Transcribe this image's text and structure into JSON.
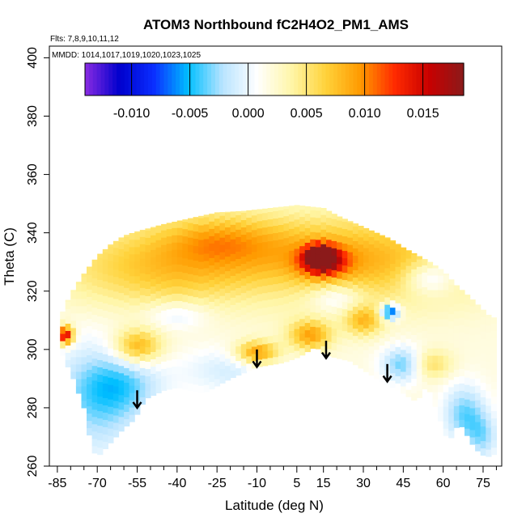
{
  "chart_data": {
    "type": "heatmap",
    "title": "ATOM3 Northbound fC2H4O2_PM1_AMS",
    "flights_note": "Flts: 7,8,9,10,11,12",
    "dates_note": "MMDD: 1014,1017,1019,1020,1023,1025",
    "xlabel": "Latitude (deg N)",
    "ylabel": "Theta (C)",
    "xlim": [
      -88,
      82
    ],
    "ylim": [
      260,
      404
    ],
    "x_ticks": [
      -85,
      -70,
      -55,
      -40,
      -25,
      -10,
      5,
      15,
      30,
      45,
      60,
      75
    ],
    "x_tick_labels": [
      "-85",
      "-70",
      "-55",
      "-40",
      "-25",
      "-10",
      "5",
      "15",
      "30",
      "45",
      "60",
      "75"
    ],
    "x_minor_ticks": [
      -80,
      -75,
      -65,
      -60,
      -50,
      -45,
      -35,
      -30,
      -20,
      -15,
      -5,
      0,
      10,
      20,
      25,
      35,
      40,
      50,
      55,
      65,
      70,
      80
    ],
    "y_ticks": [
      260,
      280,
      300,
      320,
      340,
      360,
      380,
      400
    ],
    "y_tick_labels": [
      "260",
      "280",
      "300",
      "320",
      "340",
      "360",
      "380",
      "400"
    ],
    "colorbar": {
      "range": [
        -0.014,
        0.0185
      ],
      "ticks": [
        -0.01,
        -0.005,
        0.0,
        0.005,
        0.01,
        0.015
      ],
      "tick_labels": [
        "-0.010",
        "-0.005",
        "0.000",
        "0.005",
        "0.010",
        "0.015"
      ],
      "colors": [
        "#8a2be2",
        "#0000cd",
        "#0a2eff",
        "#00bfff",
        "#b9e4ff",
        "#ffffff",
        "#fff6a8",
        "#ffd23a",
        "#ff9a00",
        "#ff2a00",
        "#c80000",
        "#8b1a1a"
      ]
    },
    "envelope": {
      "top": [
        [
          -84,
          311
        ],
        [
          -80,
          319
        ],
        [
          -75,
          326
        ],
        [
          -70,
          332
        ],
        [
          -65,
          336
        ],
        [
          -60,
          339
        ],
        [
          -55,
          340.5
        ],
        [
          -45,
          343
        ],
        [
          -35,
          345
        ],
        [
          -25,
          347
        ],
        [
          -15,
          347.5
        ],
        [
          -5,
          348.5
        ],
        [
          5,
          349.5
        ],
        [
          15,
          348.5
        ],
        [
          20,
          346
        ],
        [
          30,
          342
        ],
        [
          40,
          338
        ],
        [
          45,
          335
        ],
        [
          55,
          330
        ],
        [
          60,
          327
        ],
        [
          65,
          322
        ],
        [
          70,
          318
        ],
        [
          78,
          311
        ]
      ],
      "bottom": [
        [
          -84,
          300
        ],
        [
          -79,
          290
        ],
        [
          -75,
          280
        ],
        [
          -72,
          266
        ],
        [
          -70,
          263
        ],
        [
          -66,
          267
        ],
        [
          -60,
          273
        ],
        [
          -56,
          276
        ],
        [
          -52,
          283
        ],
        [
          -45,
          286
        ],
        [
          -40,
          287
        ],
        [
          -30,
          285
        ],
        [
          -20,
          290
        ],
        [
          -10,
          294
        ],
        [
          0,
          295.5
        ],
        [
          6,
          297.5
        ],
        [
          12,
          301
        ],
        [
          16,
          298
        ],
        [
          25,
          296
        ],
        [
          35,
          290
        ],
        [
          45,
          285
        ],
        [
          50,
          282
        ],
        [
          54,
          288
        ],
        [
          58,
          278
        ],
        [
          62,
          268
        ],
        [
          66,
          275
        ],
        [
          72,
          266
        ],
        [
          76,
          263
        ],
        [
          79,
          264
        ]
      ]
    },
    "blobs": [
      {
        "lat": -45,
        "theta": 328,
        "value": 0.007,
        "rlat": 40,
        "rtheta": 14
      },
      {
        "lat": 5,
        "theta": 335,
        "value": 0.006,
        "rlat": 45,
        "rtheta": 12
      },
      {
        "lat": 40,
        "theta": 328,
        "value": 0.006,
        "rlat": 40,
        "rtheta": 14
      },
      {
        "lat": 14,
        "theta": 332,
        "value": 0.0175,
        "rlat": 5,
        "rtheta": 3.5
      },
      {
        "lat": 15,
        "theta": 330,
        "value": 0.011,
        "rlat": 9,
        "rtheta": 5
      },
      {
        "lat": -82,
        "theta": 305,
        "value": 0.016,
        "rlat": 3,
        "rtheta": 3
      },
      {
        "lat": -55,
        "theta": 301,
        "value": 0.009,
        "rlat": 9,
        "rtheta": 6
      },
      {
        "lat": -10,
        "theta": 299,
        "value": 0.01,
        "rlat": 8,
        "rtheta": 4
      },
      {
        "lat": 10,
        "theta": 305,
        "value": 0.009,
        "rlat": 8,
        "rtheta": 5
      },
      {
        "lat": 30,
        "theta": 310,
        "value": 0.0075,
        "rlat": 7,
        "rtheta": 5
      },
      {
        "lat": 55,
        "theta": 295,
        "value": 0.006,
        "rlat": 8,
        "rtheta": 5
      },
      {
        "lat": -70,
        "theta": 283,
        "value": -0.003,
        "rlat": 18,
        "rtheta": 20
      },
      {
        "lat": -60,
        "theta": 288,
        "value": -0.0015,
        "rlat": 15,
        "rtheta": 10
      },
      {
        "lat": -20,
        "theta": 293,
        "value": -0.001,
        "rlat": 18,
        "rtheta": 8
      },
      {
        "lat": 40,
        "theta": 313,
        "value": -0.009,
        "rlat": 3.5,
        "rtheta": 2.5
      },
      {
        "lat": 45,
        "theta": 295,
        "value": -0.004,
        "rlat": 8,
        "rtheta": 6
      },
      {
        "lat": 55,
        "theta": 325,
        "value": -0.003,
        "rlat": 10,
        "rtheta": 6
      },
      {
        "lat": 68,
        "theta": 278,
        "value": -0.0035,
        "rlat": 8,
        "rtheta": 10
      },
      {
        "lat": 75,
        "theta": 270,
        "value": -0.002,
        "rlat": 6,
        "rtheta": 8
      },
      {
        "lat": -40,
        "theta": 312,
        "value": -0.001,
        "rlat": 12,
        "rtheta": 5
      },
      {
        "lat": 20,
        "theta": 318,
        "value": -0.0015,
        "rlat": 10,
        "rtheta": 5
      },
      {
        "lat": 0,
        "theta": 312,
        "value": 0.002,
        "rlat": 12,
        "rtheta": 6
      },
      {
        "lat": -25,
        "theta": 338,
        "value": 0.005,
        "rlat": 20,
        "rtheta": 8
      }
    ],
    "arrows": [
      {
        "lat": -55,
        "theta": 286,
        "theta_end": 280
      },
      {
        "lat": -10,
        "theta": 300,
        "theta_end": 294
      },
      {
        "lat": 16,
        "theta": 303,
        "theta_end": 297
      },
      {
        "lat": 39,
        "theta": 295,
        "theta_end": 289
      }
    ]
  }
}
